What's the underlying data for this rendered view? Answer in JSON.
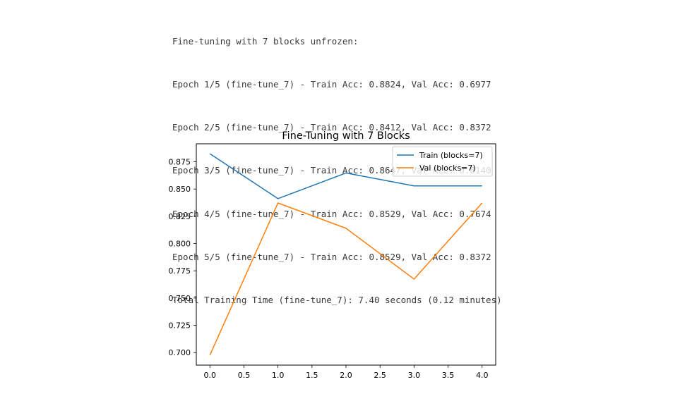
{
  "log": {
    "lines": [
      "Fine-tuning with 7 blocks unfrozen:",
      "Epoch 1/5 (fine-tune_7) - Train Acc: 0.8824, Val Acc: 0.6977",
      "Epoch 2/5 (fine-tune_7) - Train Acc: 0.8412, Val Acc: 0.8372",
      "Epoch 3/5 (fine-tune_7) - Train Acc: 0.8647, Val Acc: 0.8140",
      "Epoch 4/5 (fine-tune_7) - Train Acc: 0.8529, Val Acc: 0.7674",
      "Epoch 5/5 (fine-tune_7) - Train Acc: 0.8529, Val Acc: 0.8372",
      "Total Training Time (fine-tune_7): 7.40 seconds (0.12 minutes)"
    ]
  },
  "chart_data": {
    "type": "line",
    "title": "Fine-Tuning with 7 Blocks",
    "xlabel": "",
    "ylabel": "",
    "x": [
      0,
      1,
      2,
      3,
      4
    ],
    "xlim": [
      -0.2,
      4.2
    ],
    "ylim": [
      0.6885,
      0.8915
    ],
    "xticks": [
      "0.0",
      "0.5",
      "1.0",
      "1.5",
      "2.0",
      "2.5",
      "3.0",
      "3.5",
      "4.0"
    ],
    "yticks": [
      "0.700",
      "0.725",
      "0.750",
      "0.775",
      "0.800",
      "0.825",
      "0.850",
      "0.875"
    ],
    "grid": false,
    "legend": "top-right",
    "series": [
      {
        "name": "Train (blocks=7)",
        "color": "#1f77b4",
        "values": [
          0.8824,
          0.8412,
          0.8647,
          0.8529,
          0.8529
        ]
      },
      {
        "name": "Val (blocks=7)",
        "color": "#ff7f0e",
        "values": [
          0.6977,
          0.8372,
          0.814,
          0.7674,
          0.8372
        ]
      }
    ]
  }
}
